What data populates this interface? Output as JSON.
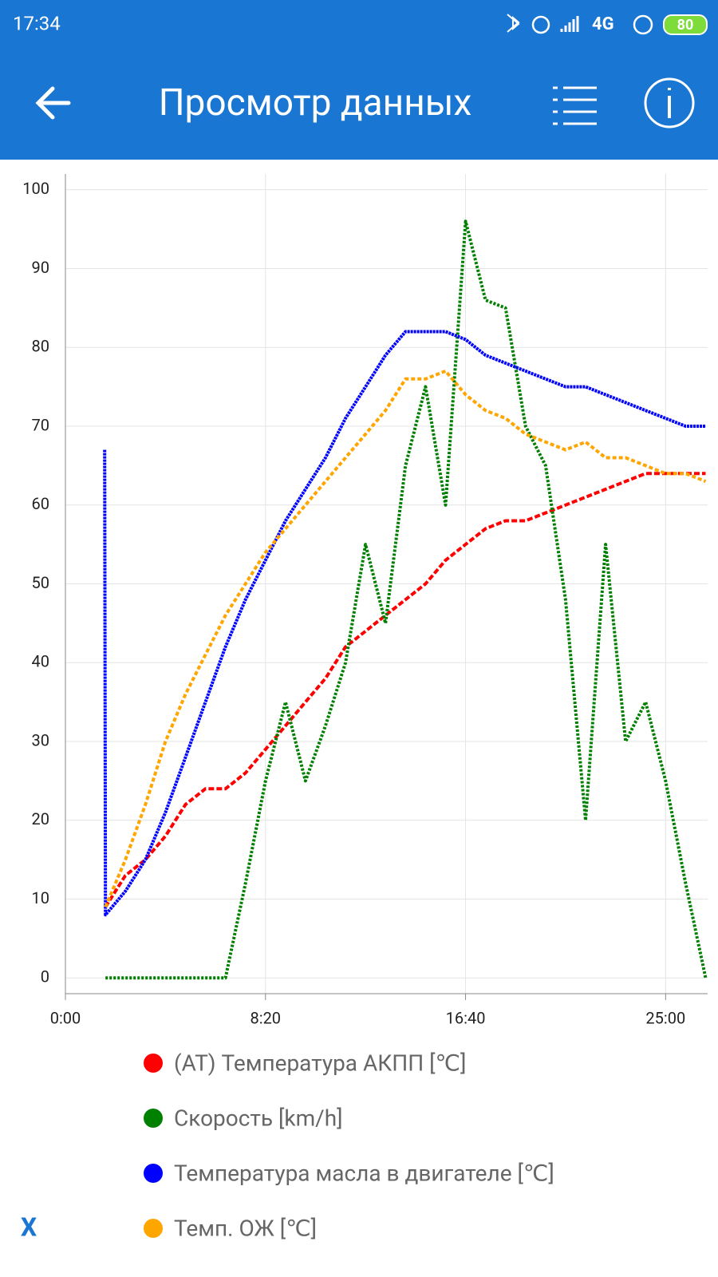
{
  "status_bar": {
    "time": "17:34",
    "network": "4G",
    "battery": "80"
  },
  "app_bar": {
    "title": "Просмотр данных"
  },
  "chart_data": {
    "type": "line",
    "x": [
      98,
      100,
      150,
      200,
      250,
      300,
      350,
      400,
      450,
      500,
      550,
      600,
      650,
      700,
      750,
      800,
      850,
      900,
      950,
      1000,
      1050,
      1100,
      1150,
      1200,
      1250,
      1300,
      1350,
      1400,
      1450,
      1500,
      1550,
      1600
    ],
    "xlim": [
      0,
      1605
    ],
    "xticks": [
      {
        "value": 0,
        "label": "0:00"
      },
      {
        "value": 500,
        "label": "8:20"
      },
      {
        "value": 1000,
        "label": "16:40"
      },
      {
        "value": 1500,
        "label": "25:00"
      }
    ],
    "ylim": [
      -2,
      102
    ],
    "yticks": [
      0,
      10,
      20,
      30,
      40,
      50,
      60,
      70,
      80,
      90,
      100
    ],
    "grid": true,
    "series": [
      {
        "name": "(AT) Температура АКПП [℃]",
        "color": "#ff0000",
        "values": [
          null,
          9,
          13,
          15,
          18,
          22,
          24,
          24,
          26,
          29,
          32,
          35,
          38,
          42,
          44,
          46,
          48,
          50,
          53,
          55,
          57,
          58,
          58,
          59,
          60,
          61,
          62,
          63,
          64,
          64,
          64,
          64
        ]
      },
      {
        "name": "Скорость [km/h]",
        "color": "#008000",
        "values": [
          null,
          0,
          0,
          0,
          0,
          0,
          0,
          0,
          12,
          25,
          35,
          25,
          32,
          40,
          55,
          45,
          65,
          75,
          60,
          96,
          86,
          85,
          70,
          65,
          48,
          20,
          55,
          30,
          35,
          25,
          12,
          0
        ]
      },
      {
        "name": "Температура масла в двигателе [℃]",
        "color": "#0000ff",
        "values": [
          67,
          8,
          11,
          15,
          21,
          28,
          35,
          42,
          48,
          53,
          58,
          62,
          66,
          71,
          75,
          79,
          82,
          82,
          82,
          81,
          79,
          78,
          77,
          76,
          75,
          75,
          74,
          73,
          72,
          71,
          70,
          70
        ]
      },
      {
        "name": "Темп. ОЖ [℃]",
        "color": "#ffa500",
        "values": [
          null,
          9,
          15,
          22,
          30,
          36,
          41,
          46,
          50,
          54,
          57,
          60,
          63,
          66,
          69,
          72,
          76,
          76,
          77,
          74,
          72,
          71,
          69,
          68,
          67,
          68,
          66,
          66,
          65,
          64,
          64,
          63
        ]
      }
    ]
  },
  "footer": {
    "close": "X"
  }
}
